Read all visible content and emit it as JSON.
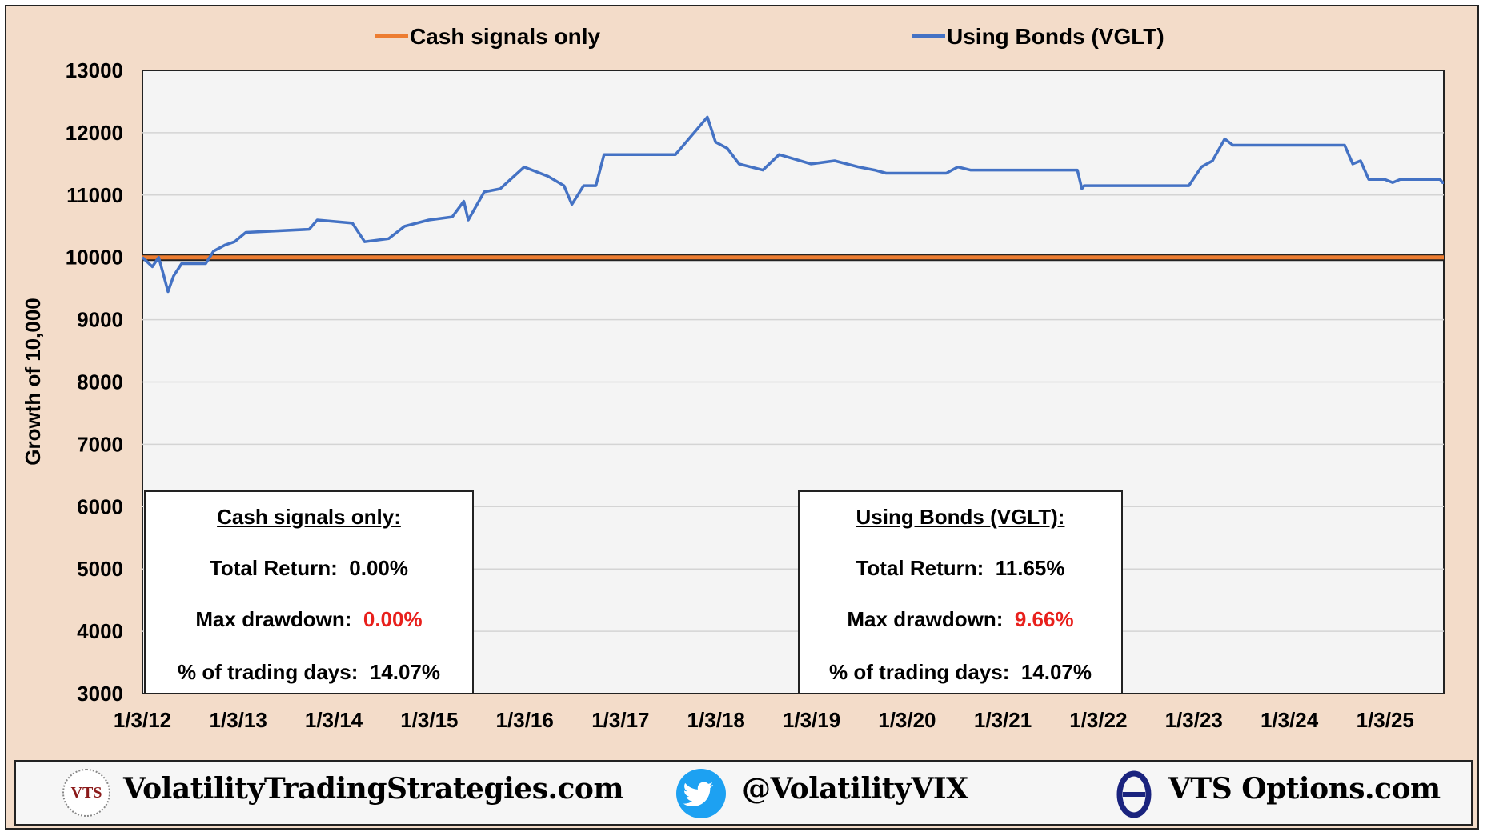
{
  "chart_data": {
    "type": "line",
    "ylabel": "Growth of 10,000",
    "ylim": [
      3000,
      13000
    ],
    "yticks": [
      "13000",
      "12000",
      "11000",
      "10000",
      "9000",
      "8000",
      "7000",
      "6000",
      "5000",
      "4000",
      "3000"
    ],
    "xticks": [
      "1/3/12",
      "1/3/13",
      "1/3/14",
      "1/3/15",
      "1/3/16",
      "1/3/17",
      "1/3/18",
      "1/3/19",
      "1/3/20",
      "1/3/21",
      "1/3/22",
      "1/3/23",
      "1/3/24",
      "1/3/25"
    ],
    "xlim": [
      "2012-01-03",
      "2025-08-15"
    ],
    "grid": true,
    "legend_position": "top",
    "series": [
      {
        "name": "Cash signals only",
        "color": "#ed7d31",
        "points": [
          [
            "2012-01-03",
            10000
          ],
          [
            "2025-08-15",
            10000
          ]
        ]
      },
      {
        "name": "Using Bonds  (VGLT)",
        "color": "#4472c4",
        "points": [
          [
            "2012-01-03",
            10000
          ],
          [
            "2012-02-10",
            9850
          ],
          [
            "2012-03-05",
            10000
          ],
          [
            "2012-03-25",
            9700
          ],
          [
            "2012-04-10",
            9450
          ],
          [
            "2012-05-01",
            9700
          ],
          [
            "2012-06-01",
            9900
          ],
          [
            "2012-09-01",
            9900
          ],
          [
            "2012-10-01",
            10100
          ],
          [
            "2012-11-15",
            10200
          ],
          [
            "2012-12-20",
            10250
          ],
          [
            "2013-02-01",
            10400
          ],
          [
            "2013-10-01",
            10450
          ],
          [
            "2013-11-01",
            10600
          ],
          [
            "2014-03-15",
            10550
          ],
          [
            "2014-05-01",
            10250
          ],
          [
            "2014-08-01",
            10300
          ],
          [
            "2014-10-01",
            10500
          ],
          [
            "2015-01-01",
            10600
          ],
          [
            "2015-04-01",
            10650
          ],
          [
            "2015-05-15",
            10900
          ],
          [
            "2015-06-01",
            10600
          ],
          [
            "2015-08-01",
            11050
          ],
          [
            "2015-10-01",
            11100
          ],
          [
            "2016-01-01",
            11450
          ],
          [
            "2016-04-01",
            11300
          ],
          [
            "2016-06-01",
            11150
          ],
          [
            "2016-07-01",
            10850
          ],
          [
            "2016-08-15",
            11150
          ],
          [
            "2016-10-01",
            11150
          ],
          [
            "2016-11-01",
            11650
          ],
          [
            "2017-08-01",
            11650
          ],
          [
            "2017-10-01",
            11950
          ],
          [
            "2017-12-01",
            12250
          ],
          [
            "2018-01-01",
            11850
          ],
          [
            "2018-02-15",
            11750
          ],
          [
            "2018-04-01",
            11500
          ],
          [
            "2018-07-01",
            11400
          ],
          [
            "2018-09-01",
            11650
          ],
          [
            "2019-01-01",
            11500
          ],
          [
            "2019-04-01",
            11550
          ],
          [
            "2019-07-01",
            11450
          ],
          [
            "2019-09-01",
            11400
          ],
          [
            "2019-10-15",
            11350
          ],
          [
            "2020-06-01",
            11350
          ],
          [
            "2020-07-15",
            11450
          ],
          [
            "2020-09-01",
            11400
          ],
          [
            "2021-10-15",
            11400
          ],
          [
            "2021-11-01",
            11100
          ],
          [
            "2021-11-10",
            11150
          ],
          [
            "2022-10-01",
            11150
          ],
          [
            "2022-12-15",
            11150
          ],
          [
            "2023-02-01",
            11450
          ],
          [
            "2023-03-15",
            11550
          ],
          [
            "2023-05-01",
            11900
          ],
          [
            "2023-06-01",
            11800
          ],
          [
            "2024-08-01",
            11800
          ],
          [
            "2024-09-01",
            11500
          ],
          [
            "2024-10-01",
            11550
          ],
          [
            "2024-11-01",
            11250
          ],
          [
            "2025-01-01",
            11250
          ],
          [
            "2025-02-01",
            11200
          ],
          [
            "2025-03-01",
            11250
          ],
          [
            "2025-08-01",
            11250
          ],
          [
            "2025-08-10",
            11200
          ],
          [
            "2025-08-15",
            11200
          ]
        ]
      }
    ]
  },
  "stats": [
    {
      "title": "Cash signals only:",
      "total_return_label": "Total Return:",
      "total_return_value": "0.00%",
      "max_drawdown_label": "Max drawdown:",
      "max_drawdown_value": "0.00%",
      "trading_days_label": "% of trading days:",
      "trading_days_value": "14.07%"
    },
    {
      "title": "Using Bonds  (VGLT):",
      "total_return_label": "Total Return:",
      "total_return_value": "11.65%",
      "max_drawdown_label": "Max drawdown:",
      "max_drawdown_value": "9.66%",
      "trading_days_label": "% of trading days:",
      "trading_days_value": "14.07%"
    }
  ],
  "footer": {
    "logo_text": "VTS",
    "site": "VolatilityTradingStrategies.com",
    "twitter": "@VolatilityVIX",
    "options_site": "VTS Options.com",
    "icons": [
      "vts-logo",
      "twitter-bird-icon",
      "theta-icon"
    ]
  }
}
